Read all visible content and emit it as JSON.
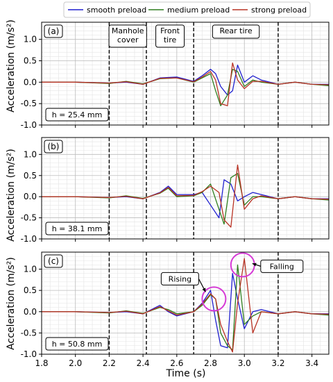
{
  "chart_data": {
    "type": "line",
    "legend": {
      "placement": "top-center",
      "entries": [
        {
          "name": "smooth preload",
          "color": "#1f1fcf"
        },
        {
          "name": "medium preload",
          "color": "#2e7d1e"
        },
        {
          "name": "strong preload",
          "color": "#b83224"
        }
      ]
    },
    "xlabel": "Time (s)",
    "ylabel": "Acceleration (m/s²)",
    "xlim": [
      1.8,
      3.5
    ],
    "ylim": [
      -1.0,
      1.4
    ],
    "xticks": [
      "1.8",
      "2.0",
      "2.2",
      "2.4",
      "2.6",
      "2.8",
      "3.0",
      "3.2",
      "3.4"
    ],
    "yticks": [
      "-1.0",
      "-0.5",
      "0.0",
      "0.5",
      "1.0"
    ],
    "grid": true,
    "event_lines_x": [
      2.2,
      2.42,
      2.7,
      3.2
    ],
    "region_labels": [
      {
        "text": "Manhole\ncover",
        "x": 2.31
      },
      {
        "text": "Front\ntire",
        "x": 2.56
      },
      {
        "text": "Rear tire",
        "x": 2.95
      }
    ],
    "panels": [
      {
        "label": "(a)",
        "height_note": "h = 25.4 mm",
        "series": [
          {
            "name": "smooth preload",
            "x": [
              1.8,
              2.0,
              2.2,
              2.3,
              2.4,
              2.5,
              2.6,
              2.7,
              2.75,
              2.8,
              2.83,
              2.86,
              2.9,
              2.93,
              2.96,
              3.0,
              3.05,
              3.1,
              3.2,
              3.3,
              3.4,
              3.5
            ],
            "y": [
              0.0,
              0.0,
              -0.02,
              0.0,
              -0.05,
              0.1,
              0.12,
              0.02,
              0.15,
              0.3,
              0.2,
              -0.1,
              -0.3,
              -0.2,
              0.4,
              0.0,
              0.15,
              0.05,
              -0.05,
              0.0,
              -0.05,
              -0.05
            ]
          },
          {
            "name": "medium preload",
            "x": [
              1.8,
              2.0,
              2.2,
              2.3,
              2.4,
              2.5,
              2.6,
              2.7,
              2.75,
              2.8,
              2.83,
              2.86,
              2.9,
              2.93,
              2.96,
              3.0,
              3.05,
              3.1,
              3.2,
              3.3,
              3.4,
              3.5
            ],
            "y": [
              0.0,
              0.0,
              -0.03,
              0.02,
              -0.04,
              0.08,
              0.1,
              0.0,
              0.1,
              0.2,
              -0.2,
              -0.55,
              -0.3,
              0.3,
              0.25,
              -0.1,
              0.05,
              0.0,
              -0.05,
              0.0,
              -0.05,
              -0.08
            ]
          },
          {
            "name": "strong preload",
            "x": [
              1.8,
              2.0,
              2.2,
              2.3,
              2.4,
              2.5,
              2.6,
              2.7,
              2.75,
              2.8,
              2.83,
              2.86,
              2.9,
              2.93,
              2.96,
              3.0,
              3.05,
              3.1,
              3.2,
              3.3,
              3.4,
              3.5
            ],
            "y": [
              0.0,
              0.0,
              -0.02,
              0.01,
              -0.05,
              0.09,
              0.1,
              0.01,
              0.12,
              0.25,
              0.05,
              -0.5,
              -0.55,
              0.45,
              0.05,
              -0.15,
              0.02,
              0.02,
              -0.05,
              0.0,
              -0.05,
              -0.06
            ]
          }
        ]
      },
      {
        "label": "(b)",
        "height_note": "h = 38.1 mm",
        "series": [
          {
            "name": "smooth preload",
            "x": [
              1.8,
              2.0,
              2.2,
              2.3,
              2.4,
              2.5,
              2.55,
              2.6,
              2.7,
              2.75,
              2.8,
              2.85,
              2.88,
              2.92,
              2.96,
              3.0,
              3.05,
              3.1,
              3.2,
              3.3,
              3.4,
              3.5
            ],
            "y": [
              0.0,
              0.0,
              -0.02,
              0.0,
              -0.05,
              0.1,
              0.25,
              0.05,
              0.05,
              0.1,
              -0.2,
              -0.5,
              0.4,
              0.3,
              -0.1,
              0.0,
              0.1,
              0.05,
              -0.05,
              0.0,
              -0.05,
              -0.05
            ]
          },
          {
            "name": "medium preload",
            "x": [
              1.8,
              2.0,
              2.2,
              2.3,
              2.4,
              2.5,
              2.55,
              2.6,
              2.7,
              2.75,
              2.8,
              2.85,
              2.88,
              2.92,
              2.96,
              3.0,
              3.05,
              3.1,
              3.2,
              3.3,
              3.4,
              3.5
            ],
            "y": [
              0.0,
              0.0,
              -0.03,
              0.02,
              -0.04,
              0.08,
              0.2,
              0.0,
              0.02,
              0.1,
              0.3,
              -0.3,
              -0.65,
              0.45,
              0.55,
              -0.2,
              0.0,
              0.0,
              -0.05,
              0.0,
              -0.05,
              -0.08
            ]
          },
          {
            "name": "strong preload",
            "x": [
              1.8,
              2.0,
              2.2,
              2.3,
              2.4,
              2.5,
              2.55,
              2.6,
              2.7,
              2.75,
              2.8,
              2.85,
              2.88,
              2.92,
              2.96,
              3.0,
              3.05,
              3.1,
              3.2,
              3.3,
              3.4,
              3.5
            ],
            "y": [
              0.0,
              0.0,
              -0.02,
              0.01,
              -0.05,
              0.09,
              0.22,
              0.02,
              0.03,
              0.12,
              0.25,
              0.1,
              -0.55,
              -0.72,
              0.75,
              -0.3,
              -0.05,
              0.02,
              -0.05,
              0.0,
              -0.05,
              -0.06
            ]
          }
        ]
      },
      {
        "label": "(c)",
        "height_note": "h = 50.8 mm",
        "annotations": [
          {
            "text": "Rising",
            "x": 2.82,
            "y": 0.3
          },
          {
            "text": "Falling",
            "x": 2.99,
            "y": 1.1
          }
        ],
        "series": [
          {
            "name": "smooth preload",
            "x": [
              1.8,
              2.0,
              2.2,
              2.3,
              2.4,
              2.5,
              2.55,
              2.6,
              2.7,
              2.75,
              2.8,
              2.83,
              2.86,
              2.9,
              2.93,
              2.96,
              3.0,
              3.05,
              3.1,
              3.2,
              3.3,
              3.4,
              3.5
            ],
            "y": [
              0.0,
              0.0,
              -0.02,
              0.0,
              -0.05,
              0.15,
              0.0,
              -0.1,
              0.0,
              0.2,
              0.5,
              -0.2,
              -0.8,
              -0.85,
              0.9,
              0.3,
              -0.4,
              0.0,
              0.05,
              -0.05,
              0.0,
              -0.05,
              -0.05
            ]
          },
          {
            "name": "medium preload",
            "x": [
              1.8,
              2.0,
              2.2,
              2.3,
              2.4,
              2.5,
              2.55,
              2.6,
              2.7,
              2.75,
              2.8,
              2.83,
              2.86,
              2.9,
              2.93,
              2.96,
              3.0,
              3.05,
              3.1,
              3.2,
              3.3,
              3.4,
              3.5
            ],
            "y": [
              0.0,
              0.0,
              -0.03,
              0.02,
              -0.04,
              0.1,
              0.05,
              -0.05,
              0.0,
              0.15,
              0.4,
              0.3,
              -0.5,
              -0.8,
              -0.9,
              1.1,
              -0.3,
              -0.1,
              0.0,
              -0.05,
              0.0,
              -0.05,
              -0.08
            ]
          },
          {
            "name": "strong preload",
            "x": [
              1.8,
              2.0,
              2.2,
              2.3,
              2.4,
              2.5,
              2.55,
              2.6,
              2.7,
              2.75,
              2.8,
              2.83,
              2.86,
              2.9,
              2.93,
              2.96,
              3.0,
              3.05,
              3.1,
              3.2,
              3.3,
              3.4,
              3.5
            ],
            "y": [
              0.0,
              0.0,
              -0.02,
              0.01,
              -0.05,
              0.12,
              0.02,
              -0.08,
              0.0,
              0.18,
              0.42,
              0.3,
              -0.3,
              -0.7,
              -0.95,
              0.2,
              1.25,
              -0.5,
              0.0,
              -0.05,
              0.0,
              -0.05,
              -0.06
            ]
          }
        ]
      }
    ]
  }
}
